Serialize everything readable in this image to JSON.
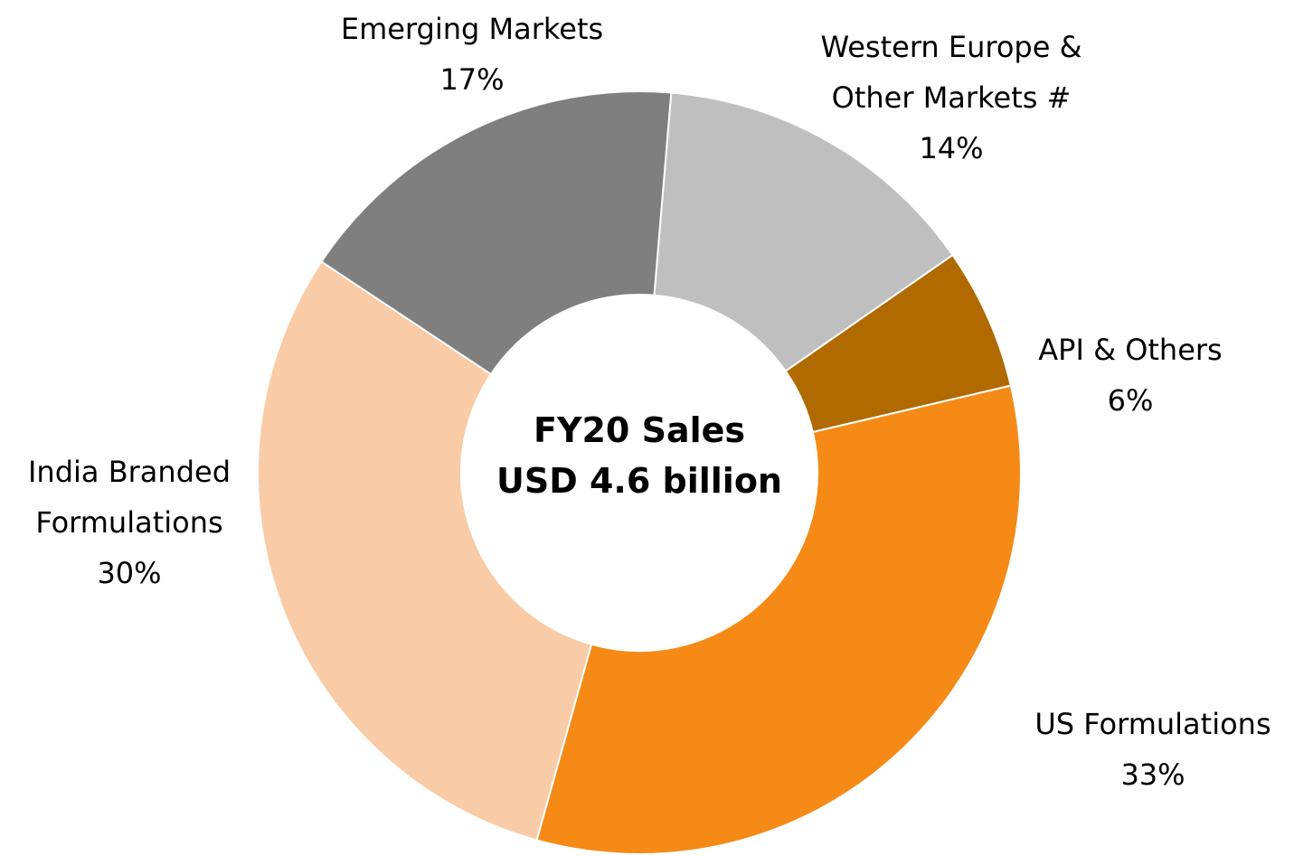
{
  "chart_data": {
    "type": "donut",
    "center_text": [
      "FY20 Sales",
      "USD 4.6 billion"
    ],
    "categories": [
      "Western Europe & Other Markets #",
      "API & Others",
      "US Formulations",
      "India Branded Formulations",
      "Emerging Markets"
    ],
    "values": [
      14,
      6,
      33,
      30,
      17
    ],
    "value_labels": [
      "14%",
      "6%",
      "33%",
      "30%",
      "17%"
    ],
    "colors": [
      "#bfbfbf",
      "#b06a00",
      "#f58a17",
      "#f9cba6",
      "#7f7f7f"
    ]
  }
}
